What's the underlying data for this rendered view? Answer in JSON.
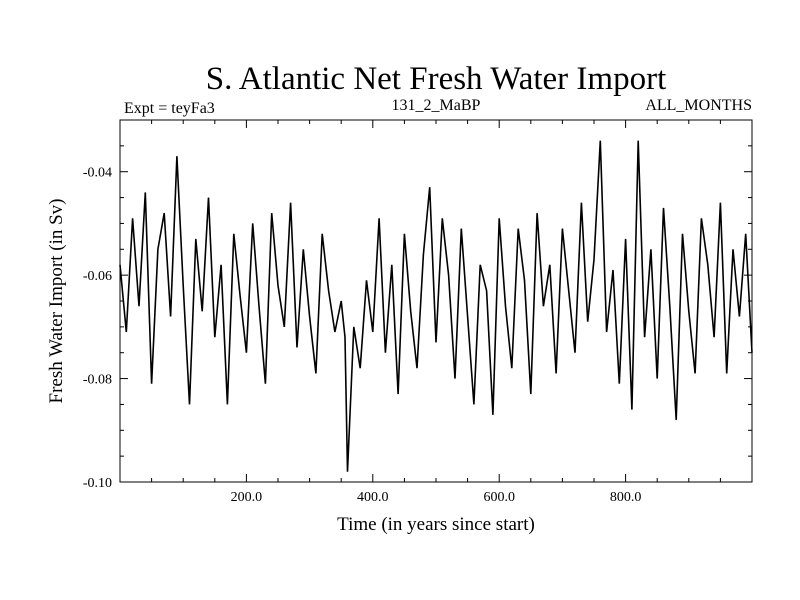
{
  "chart_data": {
    "type": "line",
    "title": "S. Atlantic Net Fresh Water Import",
    "subtitle_left": "Expt = teyFa3",
    "subtitle_center": "131_2_MaBP",
    "subtitle_right": "ALL_MONTHS",
    "xlabel": "Time (in years since start)",
    "ylabel": "Fresh Water Import (in Sv)",
    "xlim": [
      0,
      1000
    ],
    "ylim": [
      -0.1,
      -0.03
    ],
    "x_ticks": [
      {
        "value": 200,
        "label": "200.0"
      },
      {
        "value": 400,
        "label": "400.0"
      },
      {
        "value": 600,
        "label": "600.0"
      },
      {
        "value": 800,
        "label": "800.0"
      }
    ],
    "y_ticks": [
      {
        "value": -0.04,
        "label": "-0.04"
      },
      {
        "value": -0.06,
        "label": "-0.06"
      },
      {
        "value": -0.08,
        "label": "-0.08"
      },
      {
        "value": -0.1,
        "label": "-0.10"
      }
    ],
    "grid": false,
    "line_color": "#000000",
    "series": [
      {
        "name": "Fresh Water Import",
        "x": [
          0,
          10,
          20,
          30,
          40,
          50,
          60,
          70,
          80,
          90,
          100,
          110,
          120,
          130,
          140,
          150,
          160,
          170,
          180,
          190,
          200,
          210,
          220,
          230,
          240,
          250,
          260,
          270,
          280,
          290,
          300,
          310,
          320,
          330,
          340,
          350,
          356,
          360,
          370,
          380,
          390,
          400,
          410,
          420,
          430,
          440,
          450,
          460,
          470,
          480,
          490,
          500,
          510,
          520,
          530,
          540,
          550,
          560,
          570,
          580,
          590,
          600,
          610,
          620,
          630,
          640,
          650,
          660,
          670,
          680,
          690,
          700,
          710,
          720,
          730,
          740,
          750,
          760,
          770,
          780,
          790,
          800,
          810,
          820,
          830,
          840,
          850,
          860,
          870,
          880,
          890,
          900,
          910,
          920,
          930,
          940,
          950,
          960,
          970,
          980,
          990,
          1000
        ],
        "y": [
          -0.058,
          -0.071,
          -0.049,
          -0.066,
          -0.044,
          -0.081,
          -0.055,
          -0.048,
          -0.068,
          -0.037,
          -0.062,
          -0.085,
          -0.053,
          -0.067,
          -0.045,
          -0.072,
          -0.058,
          -0.085,
          -0.052,
          -0.064,
          -0.075,
          -0.05,
          -0.066,
          -0.081,
          -0.048,
          -0.062,
          -0.07,
          -0.046,
          -0.074,
          -0.055,
          -0.068,
          -0.079,
          -0.052,
          -0.063,
          -0.071,
          -0.065,
          -0.072,
          -0.098,
          -0.07,
          -0.078,
          -0.061,
          -0.071,
          -0.049,
          -0.075,
          -0.058,
          -0.083,
          -0.052,
          -0.067,
          -0.078,
          -0.056,
          -0.043,
          -0.073,
          -0.049,
          -0.06,
          -0.08,
          -0.051,
          -0.068,
          -0.085,
          -0.058,
          -0.063,
          -0.087,
          -0.049,
          -0.066,
          -0.078,
          -0.051,
          -0.061,
          -0.083,
          -0.048,
          -0.066,
          -0.058,
          -0.079,
          -0.051,
          -0.063,
          -0.075,
          -0.046,
          -0.069,
          -0.057,
          -0.034,
          -0.071,
          -0.059,
          -0.081,
          -0.053,
          -0.086,
          -0.034,
          -0.072,
          -0.055,
          -0.08,
          -0.047,
          -0.066,
          -0.088,
          -0.052,
          -0.067,
          -0.079,
          -0.049,
          -0.058,
          -0.072,
          -0.046,
          -0.079,
          -0.055,
          -0.068,
          -0.052,
          -0.075
        ]
      }
    ]
  }
}
